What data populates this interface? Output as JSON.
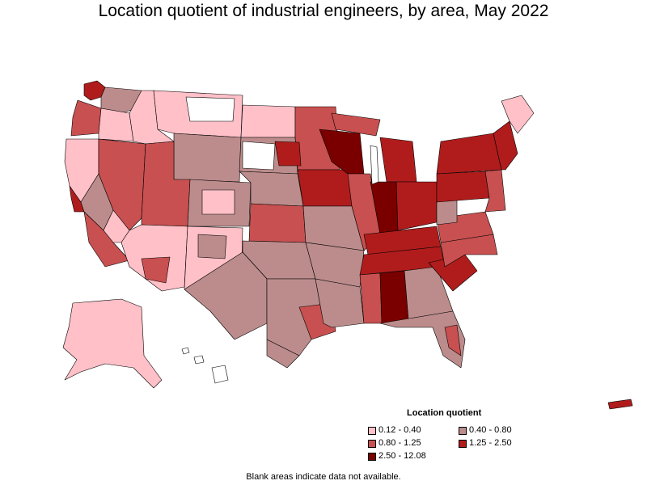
{
  "title": "Location quotient of industrial engineers, by area, May 2022",
  "legend": {
    "title": "Location quotient",
    "items": [
      {
        "label": "0.12 - 0.40",
        "color": "#ffc0c8"
      },
      {
        "label": "0.40 - 0.80",
        "color": "#bc8c8c"
      },
      {
        "label": "0.80 - 1.25",
        "color": "#c85050"
      },
      {
        "label": "1.25 - 2.50",
        "color": "#b01c1c"
      },
      {
        "label": "2.50 - 12.08",
        "color": "#7a0000"
      }
    ]
  },
  "footnote": "Blank areas indicate data not available.",
  "colors": {
    "q1": "#ffc0c8",
    "q2": "#bc8c8c",
    "q3": "#c85050",
    "q4": "#b01c1c",
    "q5": "#7a0000",
    "na": "#ffffff",
    "border": "#000000"
  }
}
